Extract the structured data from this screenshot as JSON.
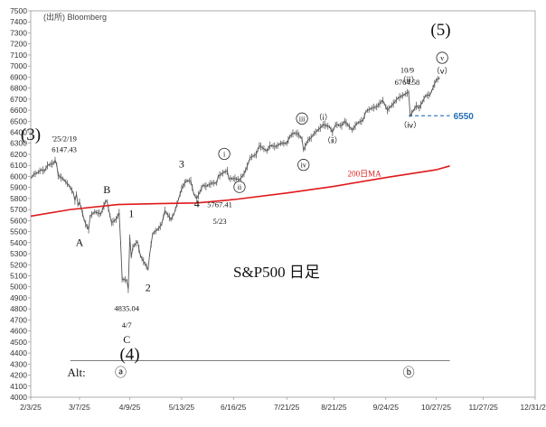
{
  "chart_data": {
    "type": "line",
    "source": "(出所) Bloomberg",
    "title_label": "S&P500 日足",
    "y_ticks": [
      4000,
      4100,
      4200,
      4300,
      4400,
      4500,
      4600,
      4700,
      4800,
      4900,
      5000,
      5100,
      5200,
      5300,
      5400,
      5500,
      5600,
      5700,
      5800,
      5900,
      6000,
      6100,
      6200,
      6300,
      6400,
      6500,
      6600,
      6700,
      6800,
      6900,
      7000,
      7100,
      7200,
      7300,
      7400,
      7500
    ],
    "ylim": [
      4000,
      7500
    ],
    "x_ticks": [
      "2/3/25",
      "3/7/25",
      "4/9/25",
      "5/13/25",
      "6/16/25",
      "7/21/25",
      "8/21/25",
      "9/24/25",
      "10/27/25",
      "11/27/25",
      "12/31/25"
    ],
    "x_tick_dates": [
      "2025-02-03",
      "2025-03-07",
      "2025-04-09",
      "2025-05-13",
      "2025-06-16",
      "2025-07-21",
      "2025-08-21",
      "2025-09-24",
      "2025-10-27",
      "2025-11-27",
      "2025-12-31"
    ],
    "xlim": [
      "2025-02-03",
      "2025-12-31"
    ],
    "series": [
      {
        "key": "price",
        "color": "#555555",
        "points": [
          [
            "2025-02-03",
            5980
          ],
          [
            "2025-02-05",
            6020
          ],
          [
            "2025-02-07",
            6030
          ],
          [
            "2025-02-10",
            6060
          ],
          [
            "2025-02-12",
            6050
          ],
          [
            "2025-02-14",
            6100
          ],
          [
            "2025-02-18",
            6120
          ],
          [
            "2025-02-19",
            6147
          ],
          [
            "2025-02-20",
            6110
          ],
          [
            "2025-02-21",
            6010
          ],
          [
            "2025-02-24",
            5980
          ],
          [
            "2025-02-26",
            5950
          ],
          [
            "2025-02-28",
            5920
          ],
          [
            "2025-03-03",
            5850
          ],
          [
            "2025-03-04",
            5780
          ],
          [
            "2025-03-05",
            5840
          ],
          [
            "2025-03-06",
            5740
          ],
          [
            "2025-03-07",
            5770
          ],
          [
            "2025-03-10",
            5610
          ],
          [
            "2025-03-11",
            5570
          ],
          [
            "2025-03-13",
            5520
          ],
          [
            "2025-03-14",
            5640
          ],
          [
            "2025-03-17",
            5680
          ],
          [
            "2025-03-19",
            5670
          ],
          [
            "2025-03-21",
            5660
          ],
          [
            "2025-03-24",
            5770
          ],
          [
            "2025-03-25",
            5780
          ],
          [
            "2025-03-26",
            5710
          ],
          [
            "2025-03-28",
            5580
          ],
          [
            "2025-03-31",
            5610
          ],
          [
            "2025-04-02",
            5670
          ],
          [
            "2025-04-03",
            5400
          ],
          [
            "2025-04-04",
            5070
          ],
          [
            "2025-04-07",
            5060
          ],
          [
            "2025-04-08",
            4980
          ],
          [
            "2025-04-09",
            5450
          ],
          [
            "2025-04-10",
            5270
          ],
          [
            "2025-04-11",
            5360
          ],
          [
            "2025-04-14",
            5410
          ],
          [
            "2025-04-16",
            5280
          ],
          [
            "2025-04-21",
            5160
          ],
          [
            "2025-04-22",
            5290
          ],
          [
            "2025-04-24",
            5480
          ],
          [
            "2025-04-28",
            5530
          ],
          [
            "2025-04-30",
            5570
          ],
          [
            "2025-05-02",
            5690
          ],
          [
            "2025-05-06",
            5610
          ],
          [
            "2025-05-08",
            5660
          ],
          [
            "2025-05-12",
            5840
          ],
          [
            "2025-05-13",
            5890
          ],
          [
            "2025-05-16",
            5960
          ],
          [
            "2025-05-19",
            5960
          ],
          [
            "2025-05-21",
            5840
          ],
          [
            "2025-05-23",
            5800
          ],
          [
            "2025-05-27",
            5920
          ],
          [
            "2025-05-29",
            5910
          ],
          [
            "2025-06-02",
            5940
          ],
          [
            "2025-06-05",
            5940
          ],
          [
            "2025-06-06",
            6000
          ],
          [
            "2025-06-10",
            6040
          ],
          [
            "2025-06-12",
            6050
          ],
          [
            "2025-06-13",
            5980
          ],
          [
            "2025-06-17",
            5980
          ],
          [
            "2025-06-20",
            5970
          ],
          [
            "2025-06-23",
            6025
          ],
          [
            "2025-06-25",
            6090
          ],
          [
            "2025-06-27",
            6170
          ],
          [
            "2025-07-01",
            6200
          ],
          [
            "2025-07-03",
            6280
          ],
          [
            "2025-07-08",
            6230
          ],
          [
            "2025-07-10",
            6280
          ],
          [
            "2025-07-14",
            6270
          ],
          [
            "2025-07-17",
            6300
          ],
          [
            "2025-07-21",
            6300
          ],
          [
            "2025-07-23",
            6360
          ],
          [
            "2025-07-25",
            6390
          ],
          [
            "2025-07-28",
            6390
          ],
          [
            "2025-07-31",
            6340
          ],
          [
            "2025-08-01",
            6240
          ],
          [
            "2025-08-04",
            6330
          ],
          [
            "2025-08-06",
            6350
          ],
          [
            "2025-08-08",
            6390
          ],
          [
            "2025-08-12",
            6440
          ],
          [
            "2025-08-14",
            6470
          ],
          [
            "2025-08-18",
            6450
          ],
          [
            "2025-08-20",
            6400
          ],
          [
            "2025-08-22",
            6470
          ],
          [
            "2025-08-26",
            6460
          ],
          [
            "2025-08-28",
            6500
          ],
          [
            "2025-09-02",
            6420
          ],
          [
            "2025-09-05",
            6480
          ],
          [
            "2025-09-09",
            6510
          ],
          [
            "2025-09-11",
            6590
          ],
          [
            "2025-09-15",
            6620
          ],
          [
            "2025-09-18",
            6630
          ],
          [
            "2025-09-22",
            6690
          ],
          [
            "2025-09-25",
            6600
          ],
          [
            "2025-09-29",
            6660
          ],
          [
            "2025-10-02",
            6710
          ],
          [
            "2025-10-06",
            6740
          ],
          [
            "2025-10-09",
            6764
          ],
          [
            "2025-10-10",
            6550
          ],
          [
            "2025-10-14",
            6640
          ],
          [
            "2025-10-16",
            6620
          ],
          [
            "2025-10-20",
            6730
          ],
          [
            "2025-10-23",
            6740
          ],
          [
            "2025-10-27",
            6870
          ],
          [
            "2025-10-29",
            6890
          ]
        ]
      },
      {
        "key": "ma200",
        "name": "200日MA",
        "color": "#e0191b",
        "points": [
          [
            "2025-02-03",
            5640
          ],
          [
            "2025-03-01",
            5700
          ],
          [
            "2025-04-01",
            5745
          ],
          [
            "2025-05-01",
            5755
          ],
          [
            "2025-05-23",
            5760
          ],
          [
            "2025-06-16",
            5790
          ],
          [
            "2025-07-21",
            5850
          ],
          [
            "2025-08-21",
            5910
          ],
          [
            "2025-09-24",
            5990
          ],
          [
            "2025-10-27",
            6060
          ],
          [
            "2025-11-05",
            6095
          ]
        ]
      }
    ],
    "reference_line": {
      "y": 6550,
      "label": "6550",
      "color": "#1f6fb4",
      "start": "2025-10-09",
      "end": "2025-11-05"
    },
    "wave_labels": [
      {
        "date": "2025-02-03",
        "y": 6330,
        "text": "(3)",
        "style": "paren"
      },
      {
        "date": "2025-02-25",
        "y": 6320,
        "text": "'25/2/19",
        "style": "note"
      },
      {
        "date": "2025-02-25",
        "y": 6220,
        "text": "6147.43",
        "style": "note"
      },
      {
        "date": "2025-03-07",
        "y": 5370,
        "text": "A",
        "style": "plain"
      },
      {
        "date": "2025-03-25",
        "y": 5850,
        "text": "B",
        "style": "plain"
      },
      {
        "date": "2025-04-10",
        "y": 5630,
        "text": "1",
        "style": "plain"
      },
      {
        "date": "2025-04-07",
        "y": 4780,
        "text": "4835.04",
        "style": "note"
      },
      {
        "date": "2025-04-07",
        "y": 4630,
        "text": "4/7",
        "style": "note"
      },
      {
        "date": "2025-04-07",
        "y": 4490,
        "text": "C",
        "style": "plain"
      },
      {
        "date": "2025-04-09",
        "y": 4340,
        "text": "(4)",
        "style": "paren"
      },
      {
        "date": "2025-04-21",
        "y": 4960,
        "text": "2",
        "style": "plain"
      },
      {
        "date": "2025-05-13",
        "y": 6080,
        "text": "3",
        "style": "plain"
      },
      {
        "date": "2025-05-23",
        "y": 5720,
        "text": "4",
        "style": "plain"
      },
      {
        "date": "2025-06-07",
        "y": 5720,
        "text": "5767.41",
        "style": "note"
      },
      {
        "date": "2025-06-07",
        "y": 5570,
        "text": "5/23",
        "style": "note"
      },
      {
        "date": "2025-06-10",
        "y": 6180,
        "text": "i",
        "style": "circle"
      },
      {
        "date": "2025-06-20",
        "y": 5880,
        "text": "ii",
        "style": "circle"
      },
      {
        "date": "2025-07-31",
        "y": 6500,
        "text": "iii",
        "style": "circle"
      },
      {
        "date": "2025-08-01",
        "y": 6080,
        "text": "iv",
        "style": "circle"
      },
      {
        "date": "2025-08-14",
        "y": 6510,
        "text": "（ⅰ）",
        "style": "small"
      },
      {
        "date": "2025-08-20",
        "y": 6300,
        "text": "（ⅱ）",
        "style": "small"
      },
      {
        "date": "2025-10-08",
        "y": 6940,
        "text": "10/9",
        "style": "note"
      },
      {
        "date": "2025-10-08",
        "y": 6830,
        "text": "6764.58",
        "style": "note"
      },
      {
        "date": "2025-10-09",
        "y": 6850,
        "text": "（ⅲ）",
        "style": "small"
      },
      {
        "date": "2025-10-10",
        "y": 6440,
        "text": "（ⅳ）",
        "style": "small"
      },
      {
        "date": "2025-10-31",
        "y": 6930,
        "text": "（ⅴ）",
        "style": "small"
      },
      {
        "date": "2025-10-31",
        "y": 7050,
        "text": "v",
        "style": "circle"
      },
      {
        "date": "2025-10-30",
        "y": 7280,
        "text": "(5)",
        "style": "paren"
      },
      {
        "date": "2025-09-10",
        "y": 6000,
        "text": "200日MA",
        "style": "ma"
      }
    ],
    "alt_line": {
      "y": 4330,
      "start": "2025-03-01",
      "end": "2025-11-05"
    },
    "alt_labels": [
      {
        "date": "2025-03-05",
        "y": 4190,
        "text": "Alt:"
      },
      {
        "date": "2025-04-03",
        "y": 4190,
        "text": "ⓐ"
      },
      {
        "date": "2025-10-09",
        "y": 4190,
        "text": "ⓑ"
      }
    ]
  }
}
